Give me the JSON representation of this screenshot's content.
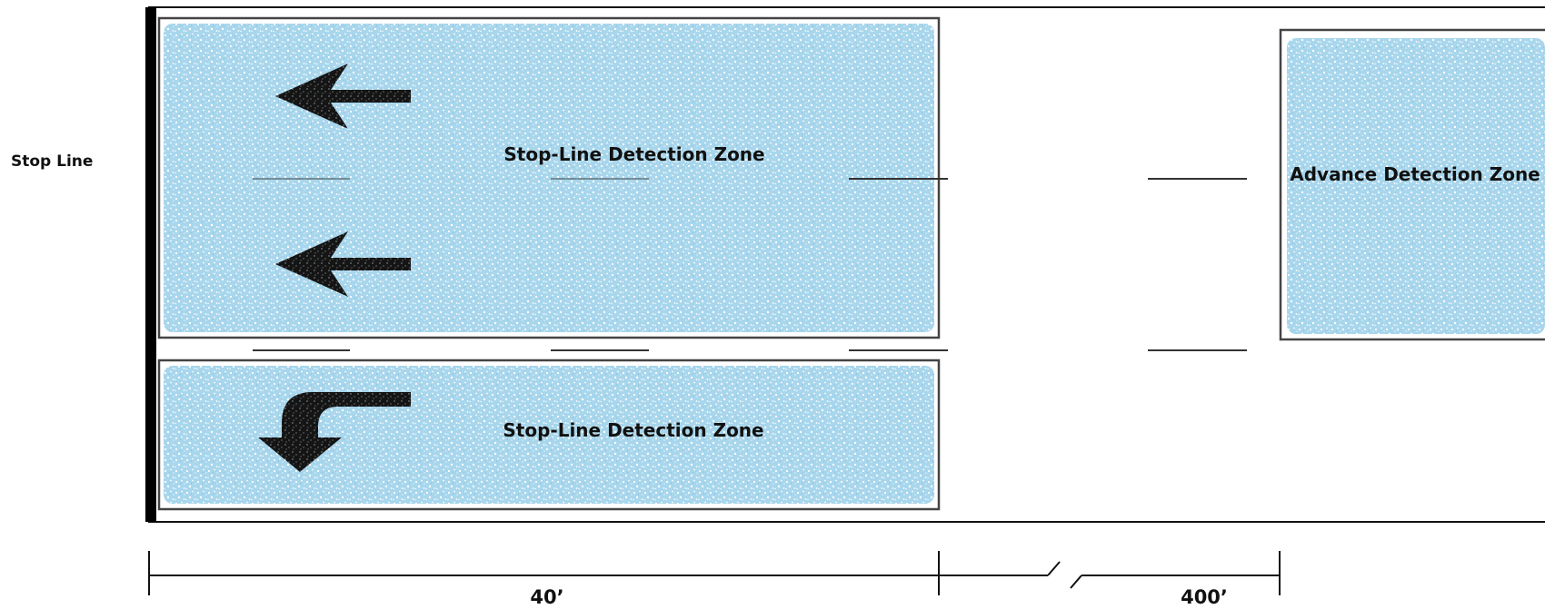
{
  "labels": {
    "stop_line": "Stop Line",
    "stop_line_zone_top": "Stop-Line Detection Zone",
    "stop_line_zone_bottom": "Stop-Line Detection Zone",
    "advance_zone": "Advance Detection Zone"
  },
  "dimensions": {
    "near": "40’",
    "far": "400’"
  },
  "arrows": [
    "left-arrow-icon",
    "left-arrow-icon",
    "left-turn-arrow-icon"
  ],
  "colors": {
    "zone_fill": "#9dcfe8",
    "line": "#111111",
    "arrow": "#151515",
    "background": "#ffffff"
  }
}
